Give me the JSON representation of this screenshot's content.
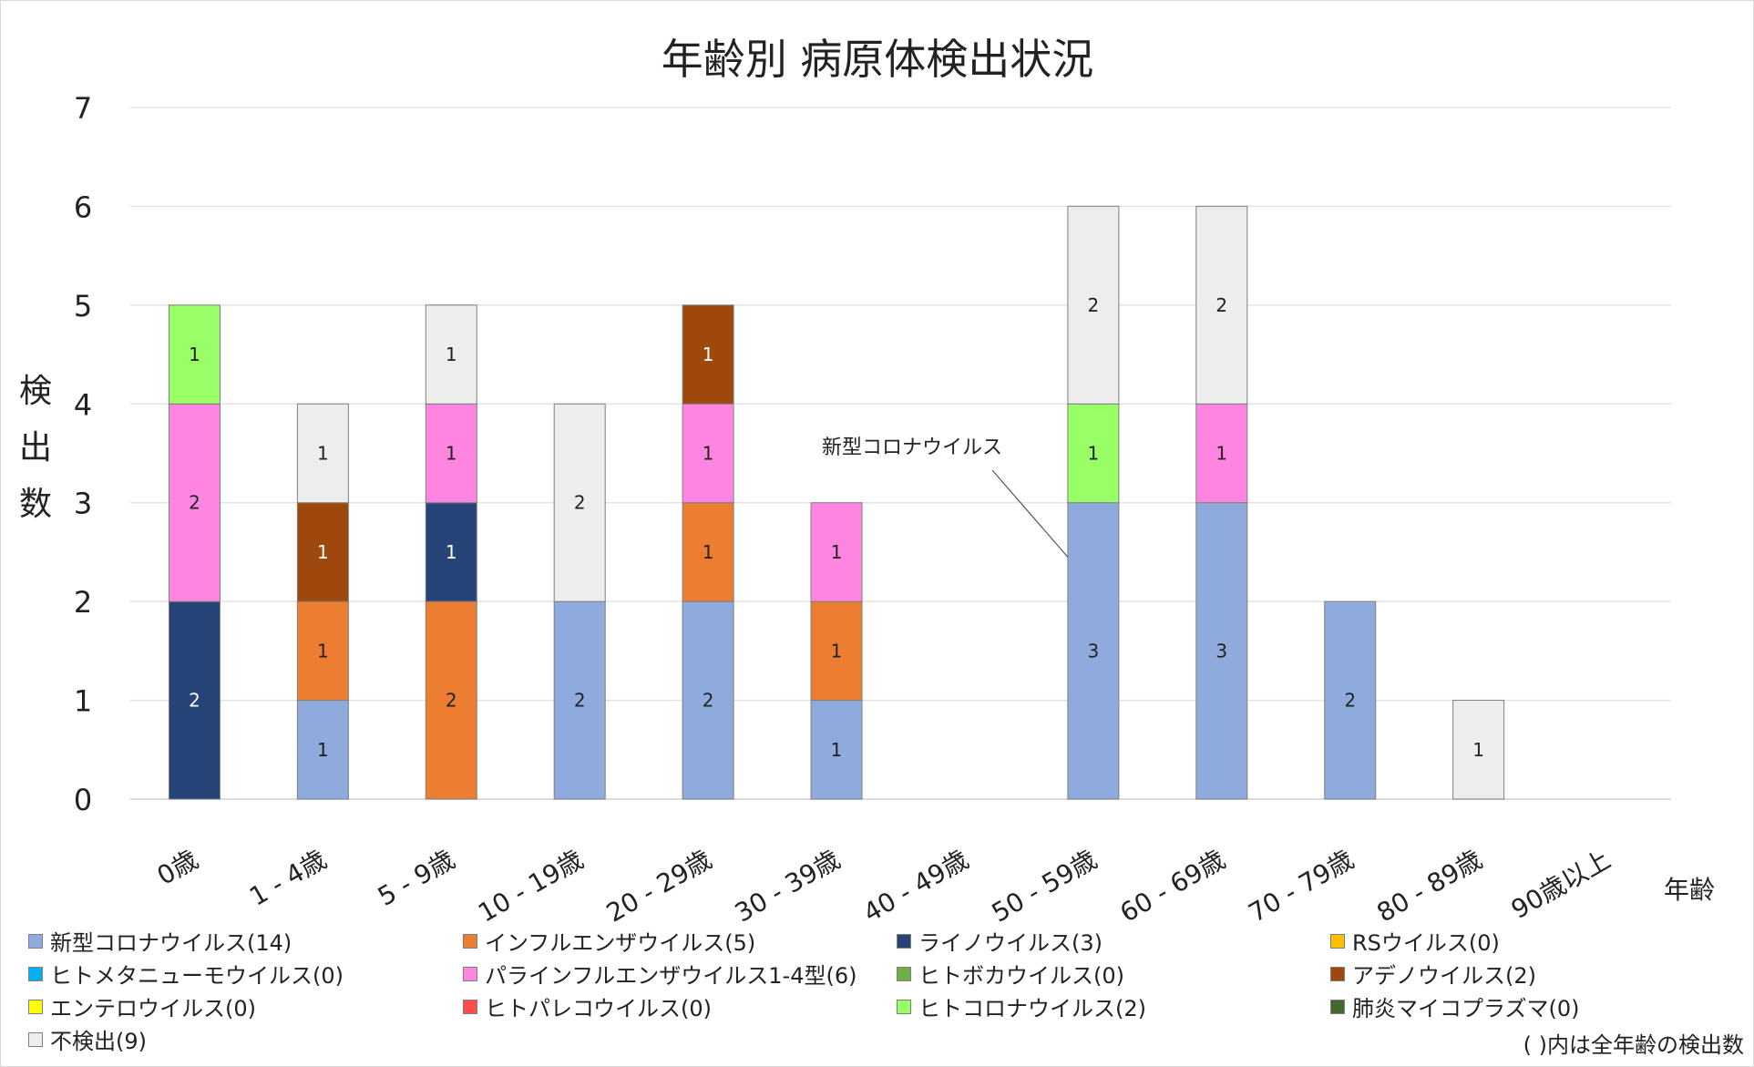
{
  "chart_data": {
    "type": "bar",
    "stacked": true,
    "title": "年齢別 病原体検出状況",
    "xlabel": "年齢",
    "ylabel": "検出数",
    "ylim": [
      0,
      7
    ],
    "yticks": [
      0,
      1,
      2,
      3,
      4,
      5,
      6,
      7
    ],
    "grid": true,
    "categories": [
      "0歳",
      "1 - 4歳",
      "5 - 9歳",
      "10 - 19歳",
      "20 - 29歳",
      "30 - 39歳",
      "40 - 49歳",
      "50 - 59歳",
      "60 - 69歳",
      "70 - 79歳",
      "80 - 89歳",
      "90歳以上"
    ],
    "series": [
      {
        "name": "新型コロナウイルス(14)",
        "color": "#8faadc",
        "values": [
          0,
          1,
          0,
          2,
          2,
          1,
          0,
          3,
          3,
          2,
          0,
          0
        ]
      },
      {
        "name": "インフルエンザウイルス(5)",
        "color": "#ed7d31",
        "values": [
          0,
          1,
          2,
          0,
          1,
          1,
          0,
          0,
          0,
          0,
          0,
          0
        ]
      },
      {
        "name": "ライノウイルス(3)",
        "color": "#264478",
        "values": [
          2,
          0,
          1,
          0,
          0,
          0,
          0,
          0,
          0,
          0,
          0,
          0
        ]
      },
      {
        "name": "RSウイルス(0)",
        "color": "#ffc000",
        "values": [
          0,
          0,
          0,
          0,
          0,
          0,
          0,
          0,
          0,
          0,
          0,
          0
        ]
      },
      {
        "name": "ヒトメタニューモウイルス(0)",
        "color": "#00b0f0",
        "values": [
          0,
          0,
          0,
          0,
          0,
          0,
          0,
          0,
          0,
          0,
          0,
          0
        ]
      },
      {
        "name": "パラインフルエンザウイルス1-4型(6)",
        "color": "#ff85e0",
        "values": [
          2,
          0,
          1,
          0,
          1,
          1,
          0,
          0,
          1,
          0,
          0,
          0
        ]
      },
      {
        "name": "ヒトボカウイルス(0)",
        "color": "#70ad47",
        "values": [
          0,
          0,
          0,
          0,
          0,
          0,
          0,
          0,
          0,
          0,
          0,
          0
        ]
      },
      {
        "name": "アデノウイルス(2)",
        "color": "#9e480e",
        "values": [
          0,
          1,
          0,
          0,
          1,
          0,
          0,
          0,
          0,
          0,
          0,
          0
        ]
      },
      {
        "name": "エンテロウイルス(0)",
        "color": "#ffff00",
        "values": [
          0,
          0,
          0,
          0,
          0,
          0,
          0,
          0,
          0,
          0,
          0,
          0
        ]
      },
      {
        "name": "ヒトパレコウイルス(0)",
        "color": "#ff4b4b",
        "values": [
          0,
          0,
          0,
          0,
          0,
          0,
          0,
          0,
          0,
          0,
          0,
          0
        ]
      },
      {
        "name": "ヒトコロナウイルス(2)",
        "color": "#99ff66",
        "values": [
          1,
          0,
          0,
          0,
          0,
          0,
          0,
          1,
          0,
          0,
          0,
          0
        ]
      },
      {
        "name": "肺炎マイコプラズマ(0)",
        "color": "#43682b",
        "values": [
          0,
          0,
          0,
          0,
          0,
          0,
          0,
          0,
          0,
          0,
          0,
          0
        ]
      },
      {
        "name": "不検出(9)",
        "color": "#ededed",
        "values": [
          0,
          1,
          1,
          2,
          0,
          0,
          0,
          2,
          2,
          0,
          1,
          0
        ]
      }
    ],
    "label_colors": {
      "#264478": "#ffffff",
      "#9e480e": "#ffffff"
    },
    "annotation": {
      "text": "新型コロナウイルス",
      "category": "50 - 59歳",
      "series": "新型コロナウイルス(14)"
    },
    "note": "( )内は全年齢の検出数"
  }
}
